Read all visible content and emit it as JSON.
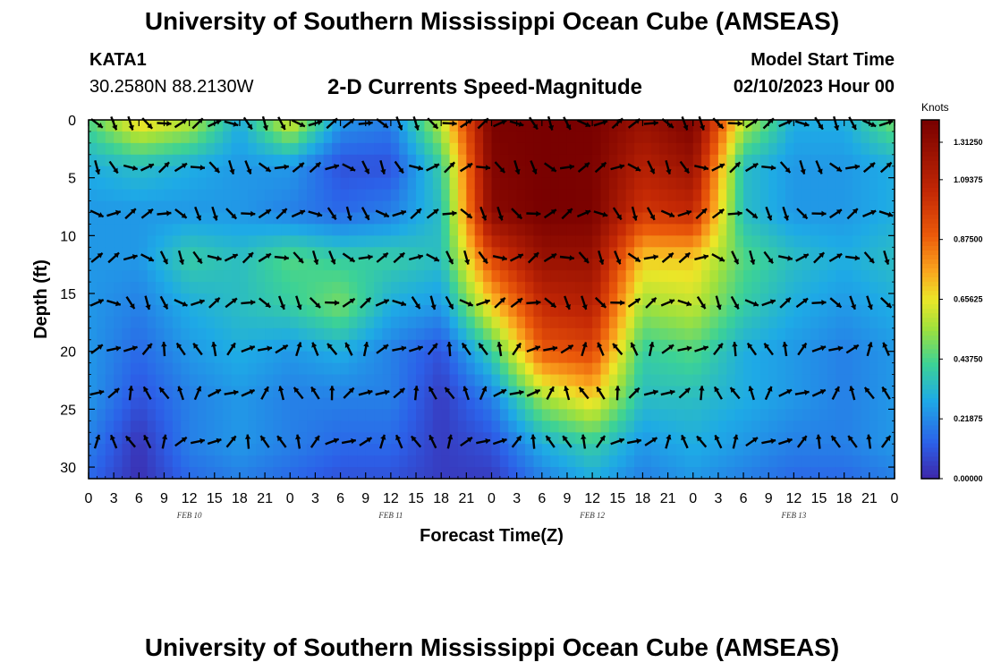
{
  "header": {
    "title": "University of Southern Mississippi Ocean Cube (AMSEAS)",
    "station": "KATA1",
    "location": "30.2580N  88.2130W",
    "plot_title": "2-D Currents Speed-Magnitude",
    "model_start_label": "Model Start Time",
    "model_start_value": "02/10/2023 Hour 00"
  },
  "footer": {
    "title_repeat": "University of Southern Mississippi Ocean Cube (AMSEAS)"
  },
  "chart_data": {
    "type": "heatmap",
    "title": "2-D Currents Speed-Magnitude",
    "xlabel": "Forecast Time(Z)",
    "ylabel": "Depth (ft)",
    "x_tick_labels": [
      "0",
      "3",
      "6",
      "9",
      "12",
      "15",
      "18",
      "21",
      "0",
      "3",
      "6",
      "9",
      "12",
      "15",
      "18",
      "21",
      "0",
      "3",
      "6",
      "9",
      "12",
      "15",
      "18",
      "21",
      "0",
      "3",
      "6",
      "9",
      "12",
      "15",
      "18",
      "21",
      "0"
    ],
    "x_range_hours": [
      0,
      96
    ],
    "date_labels": [
      {
        "label": "FEB 10",
        "hour": 12
      },
      {
        "label": "FEB 11",
        "hour": 36
      },
      {
        "label": "FEB 12",
        "hour": 60
      },
      {
        "label": "FEB 13",
        "hour": 84
      }
    ],
    "y_ticks": [
      0,
      5,
      10,
      15,
      20,
      25,
      30
    ],
    "y_range_ft": [
      0,
      31
    ],
    "colorbar": {
      "unit": "Knots",
      "range": [
        0.0,
        1.3125
      ],
      "tick_labels": [
        "1.31250",
        "1.09375",
        "0.87500",
        "0.65625",
        "0.43750",
        "0.21875",
        "0.00000"
      ],
      "tick_values": [
        1.3125,
        1.09375,
        0.875,
        0.65625,
        0.4375,
        0.21875,
        0.0
      ]
    },
    "vector_depths_ft": [
      0.3,
      4.1,
      8.1,
      11.9,
      15.8,
      19.8,
      23.6,
      27.8
    ],
    "speed_grid_note": "speed (knots) at depths 0,4,8,12,16,20,24,28,31 ft for hours 0..96 step 6",
    "speed_depths_ft": [
      0,
      4,
      8,
      12,
      16,
      20,
      24,
      28,
      31
    ],
    "speed_hours": [
      0,
      6,
      12,
      18,
      24,
      30,
      36,
      42,
      48,
      54,
      60,
      66,
      72,
      78,
      84,
      90,
      96
    ],
    "speed_grid": [
      [
        0.45,
        0.7,
        0.6,
        0.3,
        0.65,
        0.25,
        0.2,
        0.6,
        1.3,
        1.31,
        1.31,
        1.2,
        1.3,
        0.6,
        0.3,
        0.3,
        0.5
      ],
      [
        0.3,
        0.35,
        0.3,
        0.25,
        0.25,
        0.1,
        0.1,
        0.4,
        1.28,
        1.31,
        1.3,
        1.1,
        1.2,
        0.35,
        0.25,
        0.25,
        0.3
      ],
      [
        0.25,
        0.25,
        0.25,
        0.25,
        0.2,
        0.15,
        0.2,
        0.35,
        1.25,
        1.31,
        1.3,
        1.0,
        1.05,
        0.35,
        0.25,
        0.25,
        0.3
      ],
      [
        0.25,
        0.25,
        0.4,
        0.35,
        0.45,
        0.4,
        0.4,
        0.35,
        0.95,
        1.2,
        1.2,
        0.7,
        0.7,
        0.45,
        0.35,
        0.3,
        0.35
      ],
      [
        0.25,
        0.2,
        0.3,
        0.35,
        0.4,
        0.5,
        0.3,
        0.25,
        0.7,
        1.05,
        1.1,
        0.55,
        0.6,
        0.4,
        0.3,
        0.25,
        0.3
      ],
      [
        0.25,
        0.15,
        0.25,
        0.3,
        0.25,
        0.3,
        0.2,
        0.1,
        0.4,
        0.9,
        0.95,
        0.4,
        0.45,
        0.3,
        0.25,
        0.2,
        0.25
      ],
      [
        0.25,
        0.1,
        0.2,
        0.25,
        0.2,
        0.2,
        0.2,
        0.05,
        0.2,
        0.55,
        0.7,
        0.35,
        0.35,
        0.3,
        0.25,
        0.2,
        0.25
      ],
      [
        0.2,
        0.03,
        0.2,
        0.25,
        0.2,
        0.15,
        0.15,
        0.05,
        0.1,
        0.3,
        0.4,
        0.25,
        0.3,
        0.25,
        0.2,
        0.2,
        0.25
      ],
      [
        0.15,
        0.02,
        0.15,
        0.2,
        0.15,
        0.1,
        0.1,
        0.05,
        0.05,
        0.2,
        0.3,
        0.2,
        0.25,
        0.2,
        0.15,
        0.15,
        0.2
      ]
    ]
  }
}
